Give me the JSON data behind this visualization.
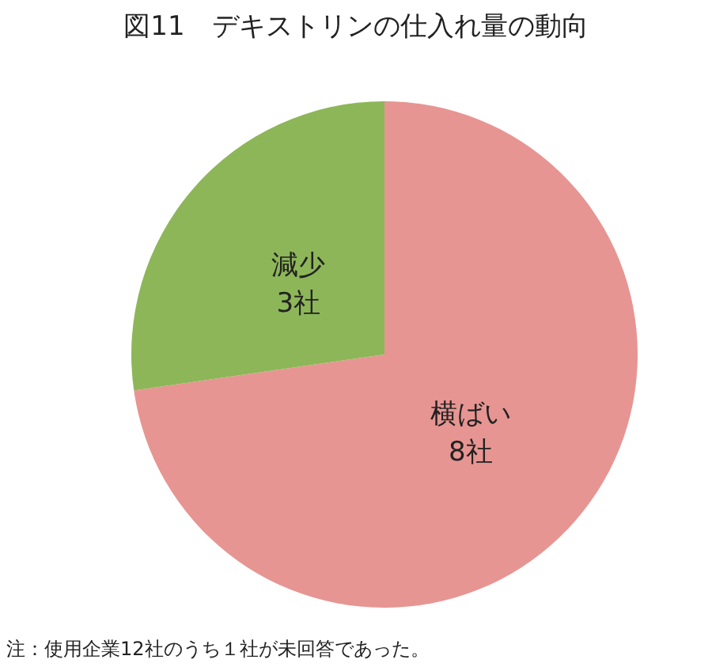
{
  "chart_data": {
    "type": "pie",
    "title": "図11　デキストリンの仕入れ量の動向",
    "categories": [
      "横ばい",
      "減少"
    ],
    "values": [
      8,
      3
    ],
    "value_labels": [
      "8社",
      "3社"
    ],
    "colors": [
      "#e79592",
      "#8db659"
    ],
    "annotations": [
      "注：使用企業12社のうち１社が未回答であった。"
    ]
  }
}
